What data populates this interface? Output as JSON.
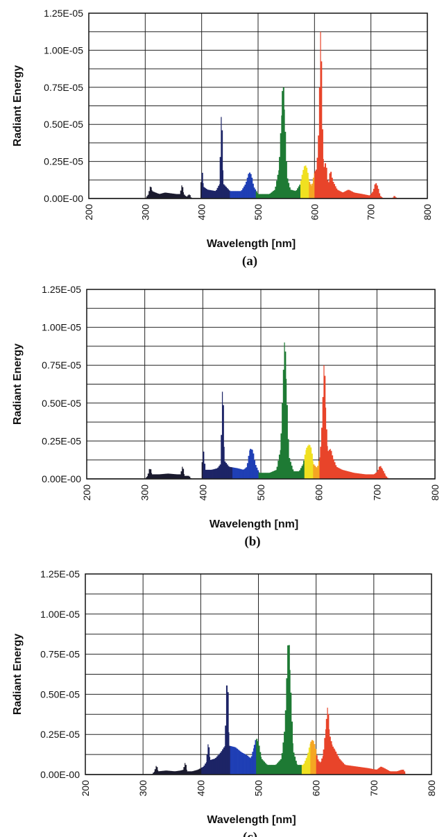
{
  "chart_data": [
    {
      "type": "area",
      "panel_label": "(a)",
      "xlabel": "Wavelength [nm]",
      "ylabel": "Radiant Energy",
      "xlim": [
        200,
        800
      ],
      "ylim": [
        0,
        1.25e-05
      ],
      "x_ticks": [
        "200",
        "300",
        "400",
        "500",
        "600",
        "700",
        "800"
      ],
      "y_ticks": [
        "0.00E-00",
        "0.25E-05",
        "0.50E-05",
        "0.75E-05",
        "1.00E-05",
        "1.25E-05"
      ],
      "grid": true,
      "spectrum": [
        [
          300,
          0.0
        ],
        [
          306,
          3e-07
        ],
        [
          309,
          9e-07
        ],
        [
          312,
          5e-07
        ],
        [
          318,
          4e-07
        ],
        [
          325,
          3e-07
        ],
        [
          335,
          4e-07
        ],
        [
          345,
          3.5e-07
        ],
        [
          355,
          3e-07
        ],
        [
          362,
          3e-07
        ],
        [
          365,
          1e-06
        ],
        [
          368,
          3e-07
        ],
        [
          373,
          1e-07
        ],
        [
          378,
          3e-07
        ],
        [
          382,
          0.0
        ],
        [
          398,
          0.0
        ],
        [
          400,
          2.2e-06
        ],
        [
          403,
          8e-07
        ],
        [
          410,
          6e-07
        ],
        [
          425,
          5e-07
        ],
        [
          432,
          1e-06
        ],
        [
          435,
          6.4e-06
        ],
        [
          438,
          1e-06
        ],
        [
          450,
          5e-07
        ],
        [
          470,
          5e-07
        ],
        [
          478,
          1e-06
        ],
        [
          484,
          1.8e-06
        ],
        [
          488,
          1.6e-06
        ],
        [
          492,
          8e-07
        ],
        [
          500,
          3e-07
        ],
        [
          520,
          3e-07
        ],
        [
          530,
          6e-07
        ],
        [
          537,
          2e-06
        ],
        [
          542,
          6e-06
        ],
        [
          544,
          8.5e-06
        ],
        [
          547,
          5.5e-06
        ],
        [
          551,
          1.5e-06
        ],
        [
          557,
          6e-07
        ],
        [
          567,
          5e-07
        ],
        [
          575,
          1e-06
        ],
        [
          579,
          1.8e-06
        ],
        [
          583,
          2.3e-06
        ],
        [
          587,
          2e-06
        ],
        [
          590,
          1.2e-06
        ],
        [
          595,
          8e-07
        ],
        [
          600,
          1.8e-06
        ],
        [
          604,
          2e-06
        ],
        [
          608,
          5e-06
        ],
        [
          611,
          1.25e-05
        ],
        [
          613,
          6e-06
        ],
        [
          616,
          2e-06
        ],
        [
          620,
          2.5e-06
        ],
        [
          624,
          8e-07
        ],
        [
          628,
          2e-06
        ],
        [
          632,
          1.2e-06
        ],
        [
          640,
          6e-07
        ],
        [
          650,
          4e-07
        ],
        [
          660,
          6e-07
        ],
        [
          670,
          4e-07
        ],
        [
          685,
          3e-07
        ],
        [
          698,
          2e-07
        ],
        [
          704,
          5e-07
        ],
        [
          708,
          1.1e-06
        ],
        [
          712,
          8e-07
        ],
        [
          716,
          2e-07
        ],
        [
          722,
          0.0
        ],
        [
          738,
          0.0
        ],
        [
          741,
          2e-07
        ],
        [
          746,
          0.0
        ]
      ]
    },
    {
      "type": "area",
      "panel_label": "(b)",
      "xlabel": "Wavelength [nm]",
      "ylabel": "Radiant Energy",
      "xlim": [
        200,
        800
      ],
      "ylim": [
        0,
        1.25e-05
      ],
      "x_ticks": [
        "200",
        "300",
        "400",
        "500",
        "600",
        "700",
        "800"
      ],
      "y_ticks": [
        "0.00E-00",
        "0.25E-05",
        "0.50E-05",
        "0.75E-05",
        "1.00E-05",
        "1.25E-05"
      ],
      "grid": true,
      "spectrum": [
        [
          300,
          0.0
        ],
        [
          305,
          2e-07
        ],
        [
          309,
          8e-07
        ],
        [
          312,
          3e-07
        ],
        [
          325,
          3e-07
        ],
        [
          340,
          3.5e-07
        ],
        [
          355,
          3e-07
        ],
        [
          362,
          3e-07
        ],
        [
          365,
          9e-07
        ],
        [
          368,
          2e-07
        ],
        [
          376,
          2e-07
        ],
        [
          380,
          0.0
        ],
        [
          398,
          0.0
        ],
        [
          400,
          2.2e-06
        ],
        [
          404,
          6e-07
        ],
        [
          415,
          6e-07
        ],
        [
          425,
          7e-07
        ],
        [
          431,
          1e-06
        ],
        [
          434,
          6.7e-06
        ],
        [
          437,
          1.2e-06
        ],
        [
          445,
          8e-07
        ],
        [
          460,
          7e-07
        ],
        [
          470,
          6e-07
        ],
        [
          476,
          8e-07
        ],
        [
          481,
          2e-06
        ],
        [
          486,
          1.9e-06
        ],
        [
          490,
          1e-06
        ],
        [
          497,
          4e-07
        ],
        [
          515,
          4e-07
        ],
        [
          527,
          6e-07
        ],
        [
          534,
          2e-06
        ],
        [
          538,
          6e-06
        ],
        [
          541,
          9.6e-06
        ],
        [
          544,
          6e-06
        ],
        [
          548,
          1.5e-06
        ],
        [
          556,
          5e-07
        ],
        [
          566,
          5e-07
        ],
        [
          573,
          1e-06
        ],
        [
          578,
          2e-06
        ],
        [
          583,
          2.3e-06
        ],
        [
          587,
          2e-06
        ],
        [
          590,
          1e-06
        ],
        [
          597,
          7e-07
        ],
        [
          602,
          1.5e-06
        ],
        [
          606,
          4e-06
        ],
        [
          609,
          8.2e-06
        ],
        [
          612,
          4e-06
        ],
        [
          615,
          1.8e-06
        ],
        [
          620,
          2e-06
        ],
        [
          624,
          1.4e-06
        ],
        [
          630,
          8e-07
        ],
        [
          640,
          6e-07
        ],
        [
          650,
          5e-07
        ],
        [
          660,
          4e-07
        ],
        [
          680,
          3e-07
        ],
        [
          695,
          3e-07
        ],
        [
          701,
          5e-07
        ],
        [
          705,
          9e-07
        ],
        [
          710,
          6e-07
        ],
        [
          715,
          2e-07
        ],
        [
          720,
          0.0
        ]
      ]
    },
    {
      "type": "area",
      "panel_label": "(c)",
      "xlabel": "Wavelength [nm]",
      "ylabel": "Radiant Energy",
      "xlim": [
        200,
        800
      ],
      "ylim": [
        0,
        1.25e-05
      ],
      "x_ticks": [
        "200",
        "300",
        "400",
        "500",
        "600",
        "700",
        "800"
      ],
      "y_ticks": [
        "0.00E-00",
        "0.25E-05",
        "0.50E-05",
        "0.75E-05",
        "1.00E-05",
        "1.25E-05"
      ],
      "grid": true,
      "spectrum": [
        [
          315,
          0.0
        ],
        [
          320,
          2e-07
        ],
        [
          323,
          6e-07
        ],
        [
          326,
          2e-07
        ],
        [
          340,
          2.5e-07
        ],
        [
          355,
          2e-07
        ],
        [
          365,
          2.5e-07
        ],
        [
          370,
          3e-07
        ],
        [
          373,
          8e-07
        ],
        [
          376,
          2e-07
        ],
        [
          385,
          2e-07
        ],
        [
          395,
          3e-07
        ],
        [
          405,
          5e-07
        ],
        [
          410,
          8e-07
        ],
        [
          413,
          2.1e-06
        ],
        [
          416,
          9e-07
        ],
        [
          425,
          1e-06
        ],
        [
          435,
          1.4e-06
        ],
        [
          442,
          1.8e-06
        ],
        [
          446,
          6.8e-06
        ],
        [
          449,
          1.8e-06
        ],
        [
          460,
          1.7e-06
        ],
        [
          470,
          1.4e-06
        ],
        [
          480,
          1.2e-06
        ],
        [
          487,
          1e-06
        ],
        [
          492,
          1.7e-06
        ],
        [
          496,
          2.3e-06
        ],
        [
          500,
          2e-06
        ],
        [
          505,
          1e-06
        ],
        [
          515,
          6e-07
        ],
        [
          530,
          6e-07
        ],
        [
          540,
          1e-06
        ],
        [
          546,
          3e-06
        ],
        [
          550,
          7e-06
        ],
        [
          552,
          9.1e-06
        ],
        [
          555,
          6e-06
        ],
        [
          560,
          1.5e-06
        ],
        [
          567,
          6e-07
        ],
        [
          578,
          6e-07
        ],
        [
          585,
          1.2e-06
        ],
        [
          590,
          2e-06
        ],
        [
          594,
          2.2e-06
        ],
        [
          598,
          1.8e-06
        ],
        [
          602,
          1e-06
        ],
        [
          607,
          7e-07
        ],
        [
          612,
          1.2e-06
        ],
        [
          617,
          3e-06
        ],
        [
          620,
          4.4e-06
        ],
        [
          623,
          2.5e-06
        ],
        [
          628,
          1.8e-06
        ],
        [
          633,
          1.5e-06
        ],
        [
          640,
          1e-06
        ],
        [
          650,
          6e-07
        ],
        [
          670,
          5e-07
        ],
        [
          690,
          4e-07
        ],
        [
          705,
          3e-07
        ],
        [
          712,
          5e-07
        ],
        [
          718,
          4e-07
        ],
        [
          728,
          2e-07
        ],
        [
          740,
          2e-07
        ],
        [
          748,
          3e-07
        ],
        [
          752,
          3e-07
        ],
        [
          755,
          0.0
        ]
      ]
    }
  ],
  "spectrum_colors": [
    {
      "to": 400,
      "color": "#1a1a2e"
    },
    {
      "to": 450,
      "color": "#1d2466"
    },
    {
      "to": 495,
      "color": "#1f3fb5"
    },
    {
      "to": 575,
      "color": "#1e7a34"
    },
    {
      "to": 590,
      "color": "#f0e020"
    },
    {
      "to": 600,
      "color": "#f5a623"
    },
    {
      "to": 800,
      "color": "#e8442a"
    }
  ]
}
